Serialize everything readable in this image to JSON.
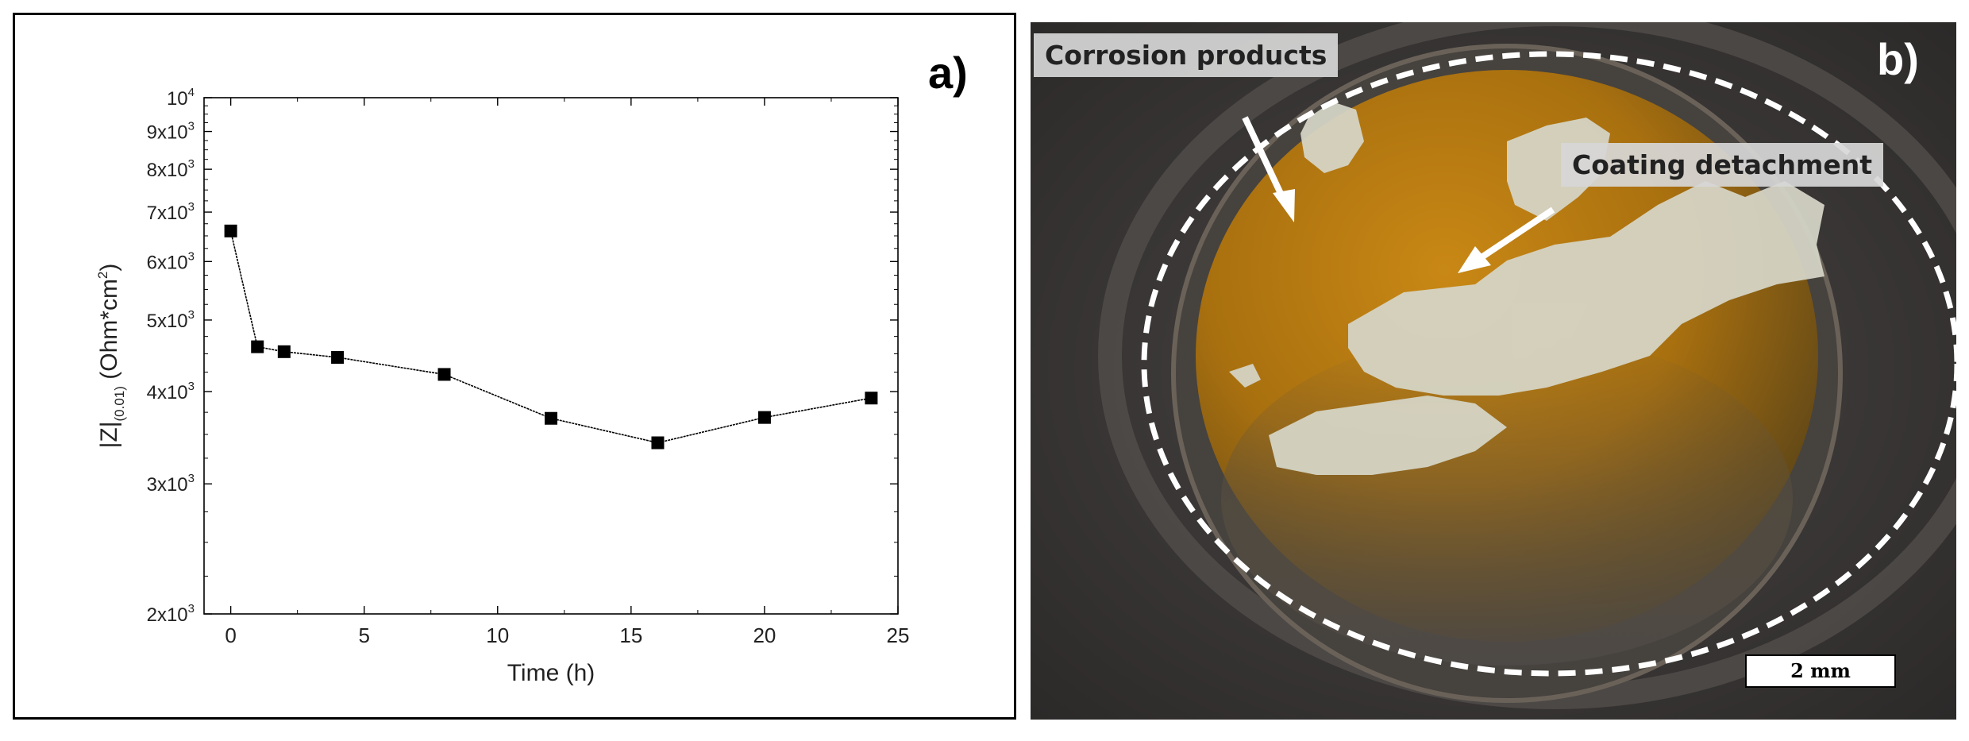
{
  "panel_a": {
    "label": "a)",
    "chart_data": {
      "type": "line",
      "x": [
        0,
        1,
        2,
        4,
        8,
        12,
        16,
        20,
        24
      ],
      "y": [
        6600,
        4600,
        4530,
        4450,
        4220,
        3680,
        3410,
        3690,
        3920
      ],
      "xlabel": "Time (h)",
      "ylabel_main": "|Z|",
      "ylabel_sub": "(0.01)",
      "ylabel_unit": " (Ohm*cm",
      "ylabel_unit_sup": "2",
      "ylabel_unit_close": ")",
      "xlim": [
        -1,
        25
      ],
      "ylim": [
        2000,
        10000
      ],
      "y_scale": "log",
      "marker": "square",
      "color": "#000000",
      "xticks": [
        "0",
        "5",
        "10",
        "15",
        "20",
        "25"
      ],
      "xtick_values": [
        0,
        5,
        10,
        15,
        20,
        25
      ],
      "yticks": [
        {
          "value": 2000,
          "mant": "2x10",
          "exp": "3"
        },
        {
          "value": 3000,
          "mant": "3x10",
          "exp": "3"
        },
        {
          "value": 4000,
          "mant": "4x10",
          "exp": "3"
        },
        {
          "value": 5000,
          "mant": "5x10",
          "exp": "3"
        },
        {
          "value": 6000,
          "mant": "6x10",
          "exp": "3"
        },
        {
          "value": 7000,
          "mant": "7x10",
          "exp": "3"
        },
        {
          "value": 8000,
          "mant": "8x10",
          "exp": "3"
        },
        {
          "value": 9000,
          "mant": "9x10",
          "exp": "3"
        },
        {
          "value": 10000,
          "mant": "10",
          "exp": "4"
        }
      ]
    }
  },
  "panel_b": {
    "label": "b)",
    "callout_corrosion": "Corrosion products",
    "callout_coating": "Coating detachment",
    "scalebar_label": "2 mm",
    "colors": {
      "metal": "#3b3837",
      "corrosion": "#b8770f",
      "coating": "#d9d9cc",
      "dashed_circle": "#ffffff"
    }
  }
}
